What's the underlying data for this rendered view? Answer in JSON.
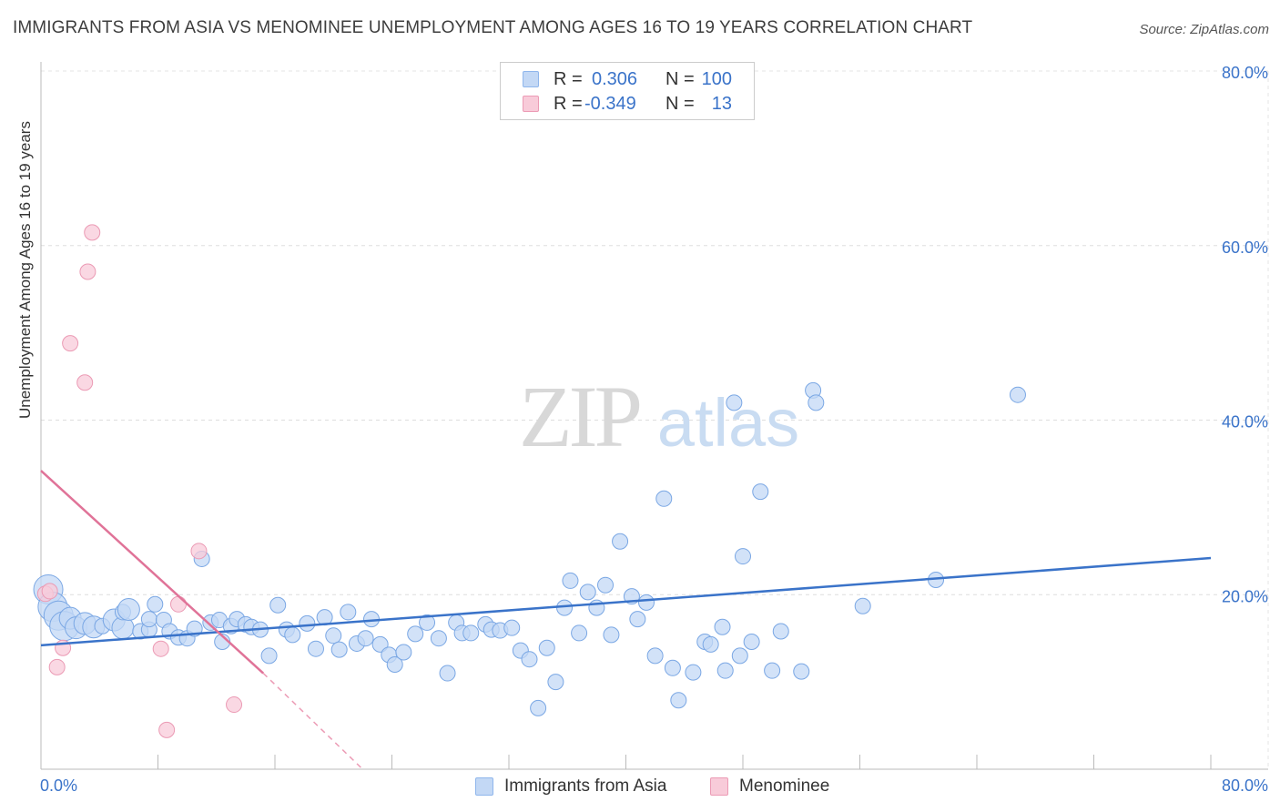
{
  "header": {
    "title": "IMMIGRANTS FROM ASIA VS MENOMINEE UNEMPLOYMENT AMONG AGES 16 TO 19 YEARS CORRELATION CHART",
    "source": "Source: ZipAtlas.com"
  },
  "watermark": {
    "zip": "ZIP",
    "atlas": "atlas"
  },
  "legend": {
    "r_label": "R =",
    "n_label": "N =",
    "series": [
      {
        "name": "Immigrants from Asia",
        "r": "0.306",
        "n": "100",
        "color": "#8fb6ec",
        "fill": "#c3d8f5"
      },
      {
        "name": "Menominee",
        "r": "-0.349",
        "n": "13",
        "color": "#ec9bb5",
        "fill": "#f8cbd9"
      }
    ]
  },
  "chart_data": {
    "type": "scatter",
    "title": "IMMIGRANTS FROM ASIA VS MENOMINEE UNEMPLOYMENT AMONG AGES 16 TO 19 YEARS CORRELATION CHART",
    "xlabel": "",
    "ylabel": "Unemployment Among Ages 16 to 19 years",
    "xlim": [
      0,
      80
    ],
    "ylim": [
      0,
      80
    ],
    "x_tick_labels": [
      "0.0%",
      "80.0%"
    ],
    "y_tick_labels": [
      "20.0%",
      "40.0%",
      "60.0%",
      "80.0%"
    ],
    "y_ticks": [
      20,
      40,
      60,
      80
    ],
    "grid": true,
    "legend_position": "top-center",
    "series": [
      {
        "name": "Immigrants from Asia",
        "color": "#3a73c9",
        "trend": {
          "x": [
            0,
            80
          ],
          "y": [
            14.2,
            24.2
          ],
          "style": "solid"
        },
        "points": [
          {
            "x": 0.5,
            "y": 20.6,
            "s": 3
          },
          {
            "x": 0.8,
            "y": 18.6,
            "s": 3
          },
          {
            "x": 1.2,
            "y": 17.6,
            "s": 3
          },
          {
            "x": 1.6,
            "y": 16.4,
            "s": 3
          },
          {
            "x": 2.0,
            "y": 17.3,
            "s": 2
          },
          {
            "x": 2.4,
            "y": 16.2,
            "s": 2
          },
          {
            "x": 3.0,
            "y": 16.7,
            "s": 2
          },
          {
            "x": 3.6,
            "y": 16.3,
            "s": 2
          },
          {
            "x": 4.2,
            "y": 16.4,
            "s": 1
          },
          {
            "x": 5.0,
            "y": 17.1,
            "s": 2
          },
          {
            "x": 5.6,
            "y": 16.2,
            "s": 2
          },
          {
            "x": 5.6,
            "y": 18.0,
            "s": 1
          },
          {
            "x": 6.0,
            "y": 18.3,
            "s": 2
          },
          {
            "x": 6.8,
            "y": 15.8,
            "s": 1
          },
          {
            "x": 7.4,
            "y": 16.0,
            "s": 1
          },
          {
            "x": 7.4,
            "y": 17.2,
            "s": 1
          },
          {
            "x": 7.8,
            "y": 18.9,
            "s": 1
          },
          {
            "x": 8.4,
            "y": 17.1,
            "s": 1
          },
          {
            "x": 8.8,
            "y": 15.8,
            "s": 1
          },
          {
            "x": 9.4,
            "y": 15.1,
            "s": 1
          },
          {
            "x": 10.0,
            "y": 15.0,
            "s": 1
          },
          {
            "x": 10.5,
            "y": 16.1,
            "s": 1
          },
          {
            "x": 11.0,
            "y": 24.1,
            "s": 1
          },
          {
            "x": 11.6,
            "y": 16.8,
            "s": 1
          },
          {
            "x": 12.2,
            "y": 17.1,
            "s": 1
          },
          {
            "x": 12.4,
            "y": 14.6,
            "s": 1
          },
          {
            "x": 13.0,
            "y": 16.4,
            "s": 1
          },
          {
            "x": 13.4,
            "y": 17.2,
            "s": 1
          },
          {
            "x": 14.0,
            "y": 16.6,
            "s": 1
          },
          {
            "x": 14.4,
            "y": 16.3,
            "s": 1
          },
          {
            "x": 15.0,
            "y": 16.0,
            "s": 1
          },
          {
            "x": 15.6,
            "y": 13.0,
            "s": 1
          },
          {
            "x": 16.2,
            "y": 18.8,
            "s": 1
          },
          {
            "x": 16.8,
            "y": 16.0,
            "s": 1
          },
          {
            "x": 17.2,
            "y": 15.4,
            "s": 1
          },
          {
            "x": 18.2,
            "y": 16.7,
            "s": 1
          },
          {
            "x": 18.8,
            "y": 13.8,
            "s": 1
          },
          {
            "x": 19.4,
            "y": 17.4,
            "s": 1
          },
          {
            "x": 20.0,
            "y": 15.3,
            "s": 1
          },
          {
            "x": 20.4,
            "y": 13.7,
            "s": 1
          },
          {
            "x": 21.0,
            "y": 18.0,
            "s": 1
          },
          {
            "x": 21.6,
            "y": 14.4,
            "s": 1
          },
          {
            "x": 22.2,
            "y": 15.0,
            "s": 1
          },
          {
            "x": 22.6,
            "y": 17.2,
            "s": 1
          },
          {
            "x": 23.2,
            "y": 14.3,
            "s": 1
          },
          {
            "x": 23.8,
            "y": 13.1,
            "s": 1
          },
          {
            "x": 24.2,
            "y": 12.0,
            "s": 1
          },
          {
            "x": 24.8,
            "y": 13.4,
            "s": 1
          },
          {
            "x": 25.6,
            "y": 15.5,
            "s": 1
          },
          {
            "x": 26.4,
            "y": 16.8,
            "s": 1
          },
          {
            "x": 27.2,
            "y": 15.0,
            "s": 1
          },
          {
            "x": 27.8,
            "y": 11.0,
            "s": 1
          },
          {
            "x": 28.4,
            "y": 16.8,
            "s": 1
          },
          {
            "x": 28.8,
            "y": 15.6,
            "s": 1
          },
          {
            "x": 29.4,
            "y": 15.6,
            "s": 1
          },
          {
            "x": 30.4,
            "y": 16.6,
            "s": 1
          },
          {
            "x": 30.8,
            "y": 16.0,
            "s": 1
          },
          {
            "x": 31.4,
            "y": 15.9,
            "s": 1
          },
          {
            "x": 32.2,
            "y": 16.2,
            "s": 1
          },
          {
            "x": 32.8,
            "y": 13.6,
            "s": 1
          },
          {
            "x": 33.4,
            "y": 12.6,
            "s": 1
          },
          {
            "x": 34.0,
            "y": 7.0,
            "s": 1
          },
          {
            "x": 34.6,
            "y": 13.9,
            "s": 1
          },
          {
            "x": 35.2,
            "y": 10.0,
            "s": 1
          },
          {
            "x": 35.8,
            "y": 18.5,
            "s": 1
          },
          {
            "x": 36.2,
            "y": 21.6,
            "s": 1
          },
          {
            "x": 36.8,
            "y": 15.6,
            "s": 1
          },
          {
            "x": 37.4,
            "y": 20.3,
            "s": 1
          },
          {
            "x": 38.0,
            "y": 18.5,
            "s": 1
          },
          {
            "x": 38.6,
            "y": 21.1,
            "s": 1
          },
          {
            "x": 39.0,
            "y": 15.4,
            "s": 1
          },
          {
            "x": 39.6,
            "y": 26.1,
            "s": 1
          },
          {
            "x": 40.4,
            "y": 19.8,
            "s": 1
          },
          {
            "x": 40.8,
            "y": 17.2,
            "s": 1
          },
          {
            "x": 41.4,
            "y": 19.1,
            "s": 1
          },
          {
            "x": 42.0,
            "y": 13.0,
            "s": 1
          },
          {
            "x": 42.6,
            "y": 31.0,
            "s": 1
          },
          {
            "x": 43.2,
            "y": 11.6,
            "s": 1
          },
          {
            "x": 43.6,
            "y": 7.9,
            "s": 1
          },
          {
            "x": 44.6,
            "y": 11.1,
            "s": 1
          },
          {
            "x": 45.4,
            "y": 14.6,
            "s": 1
          },
          {
            "x": 45.8,
            "y": 14.3,
            "s": 1
          },
          {
            "x": 46.6,
            "y": 16.3,
            "s": 1
          },
          {
            "x": 46.8,
            "y": 11.3,
            "s": 1
          },
          {
            "x": 47.4,
            "y": 42.0,
            "s": 1
          },
          {
            "x": 47.8,
            "y": 13.0,
            "s": 1
          },
          {
            "x": 48.0,
            "y": 24.4,
            "s": 1
          },
          {
            "x": 48.6,
            "y": 14.6,
            "s": 1
          },
          {
            "x": 49.2,
            "y": 31.8,
            "s": 1
          },
          {
            "x": 50.0,
            "y": 11.3,
            "s": 1
          },
          {
            "x": 50.6,
            "y": 15.8,
            "s": 1
          },
          {
            "x": 52.0,
            "y": 11.2,
            "s": 1
          },
          {
            "x": 52.8,
            "y": 43.4,
            "s": 1
          },
          {
            "x": 53.0,
            "y": 42.0,
            "s": 1
          },
          {
            "x": 56.2,
            "y": 18.7,
            "s": 1
          },
          {
            "x": 61.2,
            "y": 21.7,
            "s": 1
          },
          {
            "x": 66.8,
            "y": 42.9,
            "s": 1
          }
        ]
      },
      {
        "name": "Menominee",
        "color": "#e07398",
        "trend": {
          "x": [
            0,
            15.2
          ],
          "y": [
            34.2,
            11.0
          ],
          "dashed_to": [
            22,
            0
          ],
          "style": "solid"
        },
        "points": [
          {
            "x": 0.3,
            "y": 20.1,
            "s": 1
          },
          {
            "x": 0.6,
            "y": 20.4,
            "s": 1
          },
          {
            "x": 1.1,
            "y": 11.7,
            "s": 1
          },
          {
            "x": 1.5,
            "y": 13.9,
            "s": 1
          },
          {
            "x": 2.0,
            "y": 48.8,
            "s": 1
          },
          {
            "x": 3.0,
            "y": 44.3,
            "s": 1
          },
          {
            "x": 3.2,
            "y": 57.0,
            "s": 1
          },
          {
            "x": 3.5,
            "y": 61.5,
            "s": 1
          },
          {
            "x": 8.2,
            "y": 13.8,
            "s": 1
          },
          {
            "x": 8.6,
            "y": 4.5,
            "s": 1
          },
          {
            "x": 9.4,
            "y": 18.9,
            "s": 1
          },
          {
            "x": 10.8,
            "y": 25.0,
            "s": 1
          },
          {
            "x": 13.2,
            "y": 7.4,
            "s": 1
          }
        ]
      }
    ]
  }
}
